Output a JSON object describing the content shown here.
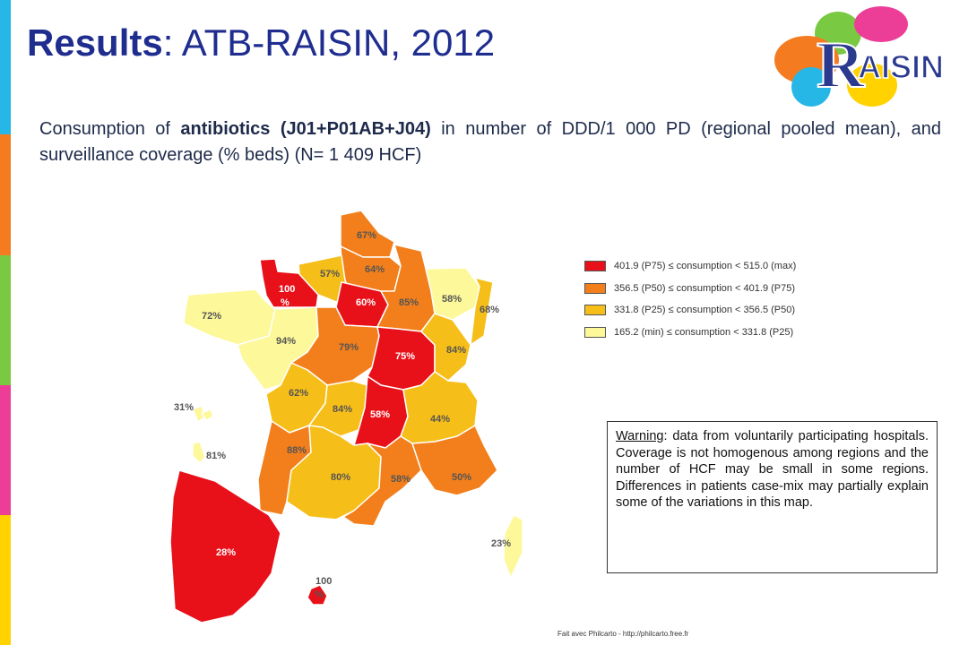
{
  "title": {
    "bold": "Results",
    "rest": ": ATB-RAISIN, 2012"
  },
  "subtitle": {
    "pre": "Consumption of ",
    "bold": "antibiotics (J01+P01AB+J04)",
    "post": " in number of DDD/1 000 PD (regional pooled mean), and surveillance coverage (% beds) (N= 1 409 HCF)"
  },
  "logo": {
    "text_r": "R",
    "text_rest": "AISIN"
  },
  "side_bar_colors": [
    "#26b7e6",
    "#f47b20",
    "#7ac943",
    "#26b7e6",
    "#ec3e97",
    "#ffd200"
  ],
  "legend": {
    "items": [
      {
        "label": "401.9 (P75) ≤ consumption < 515.0 (max)",
        "color": "#e8111a"
      },
      {
        "label": "356.5 (P50) ≤ consumption < 401.9 (P75)",
        "color": "#f27f1b"
      },
      {
        "label": "331.8 (P25) ≤ consumption < 356.5 (P50)",
        "color": "#f6be18"
      },
      {
        "label": "165.2 (min) ≤ consumption < 331.8 (P25)",
        "color": "#fdf89a"
      }
    ]
  },
  "regions": {
    "nord": "67%",
    "picardie": "64%",
    "haute_normandie": "57%",
    "basse_normandie": "100 %",
    "ile_de_france": "60%",
    "champagne": "85%",
    "lorraine": "58%",
    "alsace": "68%",
    "bretagne": "72%",
    "pays_de_la_loire": "94%",
    "centre": "79%",
    "bourgogne": "75%",
    "franche_comte": "84%",
    "poitou": "62%",
    "limousin": "84%",
    "auvergne": "58%",
    "rhone_alpes": "44%",
    "aquitaine": "88%",
    "midi_pyrenees": "80%",
    "languedoc": "58%",
    "paca": "50%",
    "corse": "23%",
    "guadeloupe": "31%",
    "martinique": "81%",
    "guyane": "28%",
    "reunion": "100 %"
  },
  "warning": {
    "heading": "Warning",
    "text": ": data from voluntarily participating hospitals. Coverage is not homogenous among regions and the number of HCF may be small in some regions. Differences in patients case-mix may partially explain some of the variations in this map."
  },
  "credit": "Fait avec Philcarto - http://philcarto.free.fr"
}
